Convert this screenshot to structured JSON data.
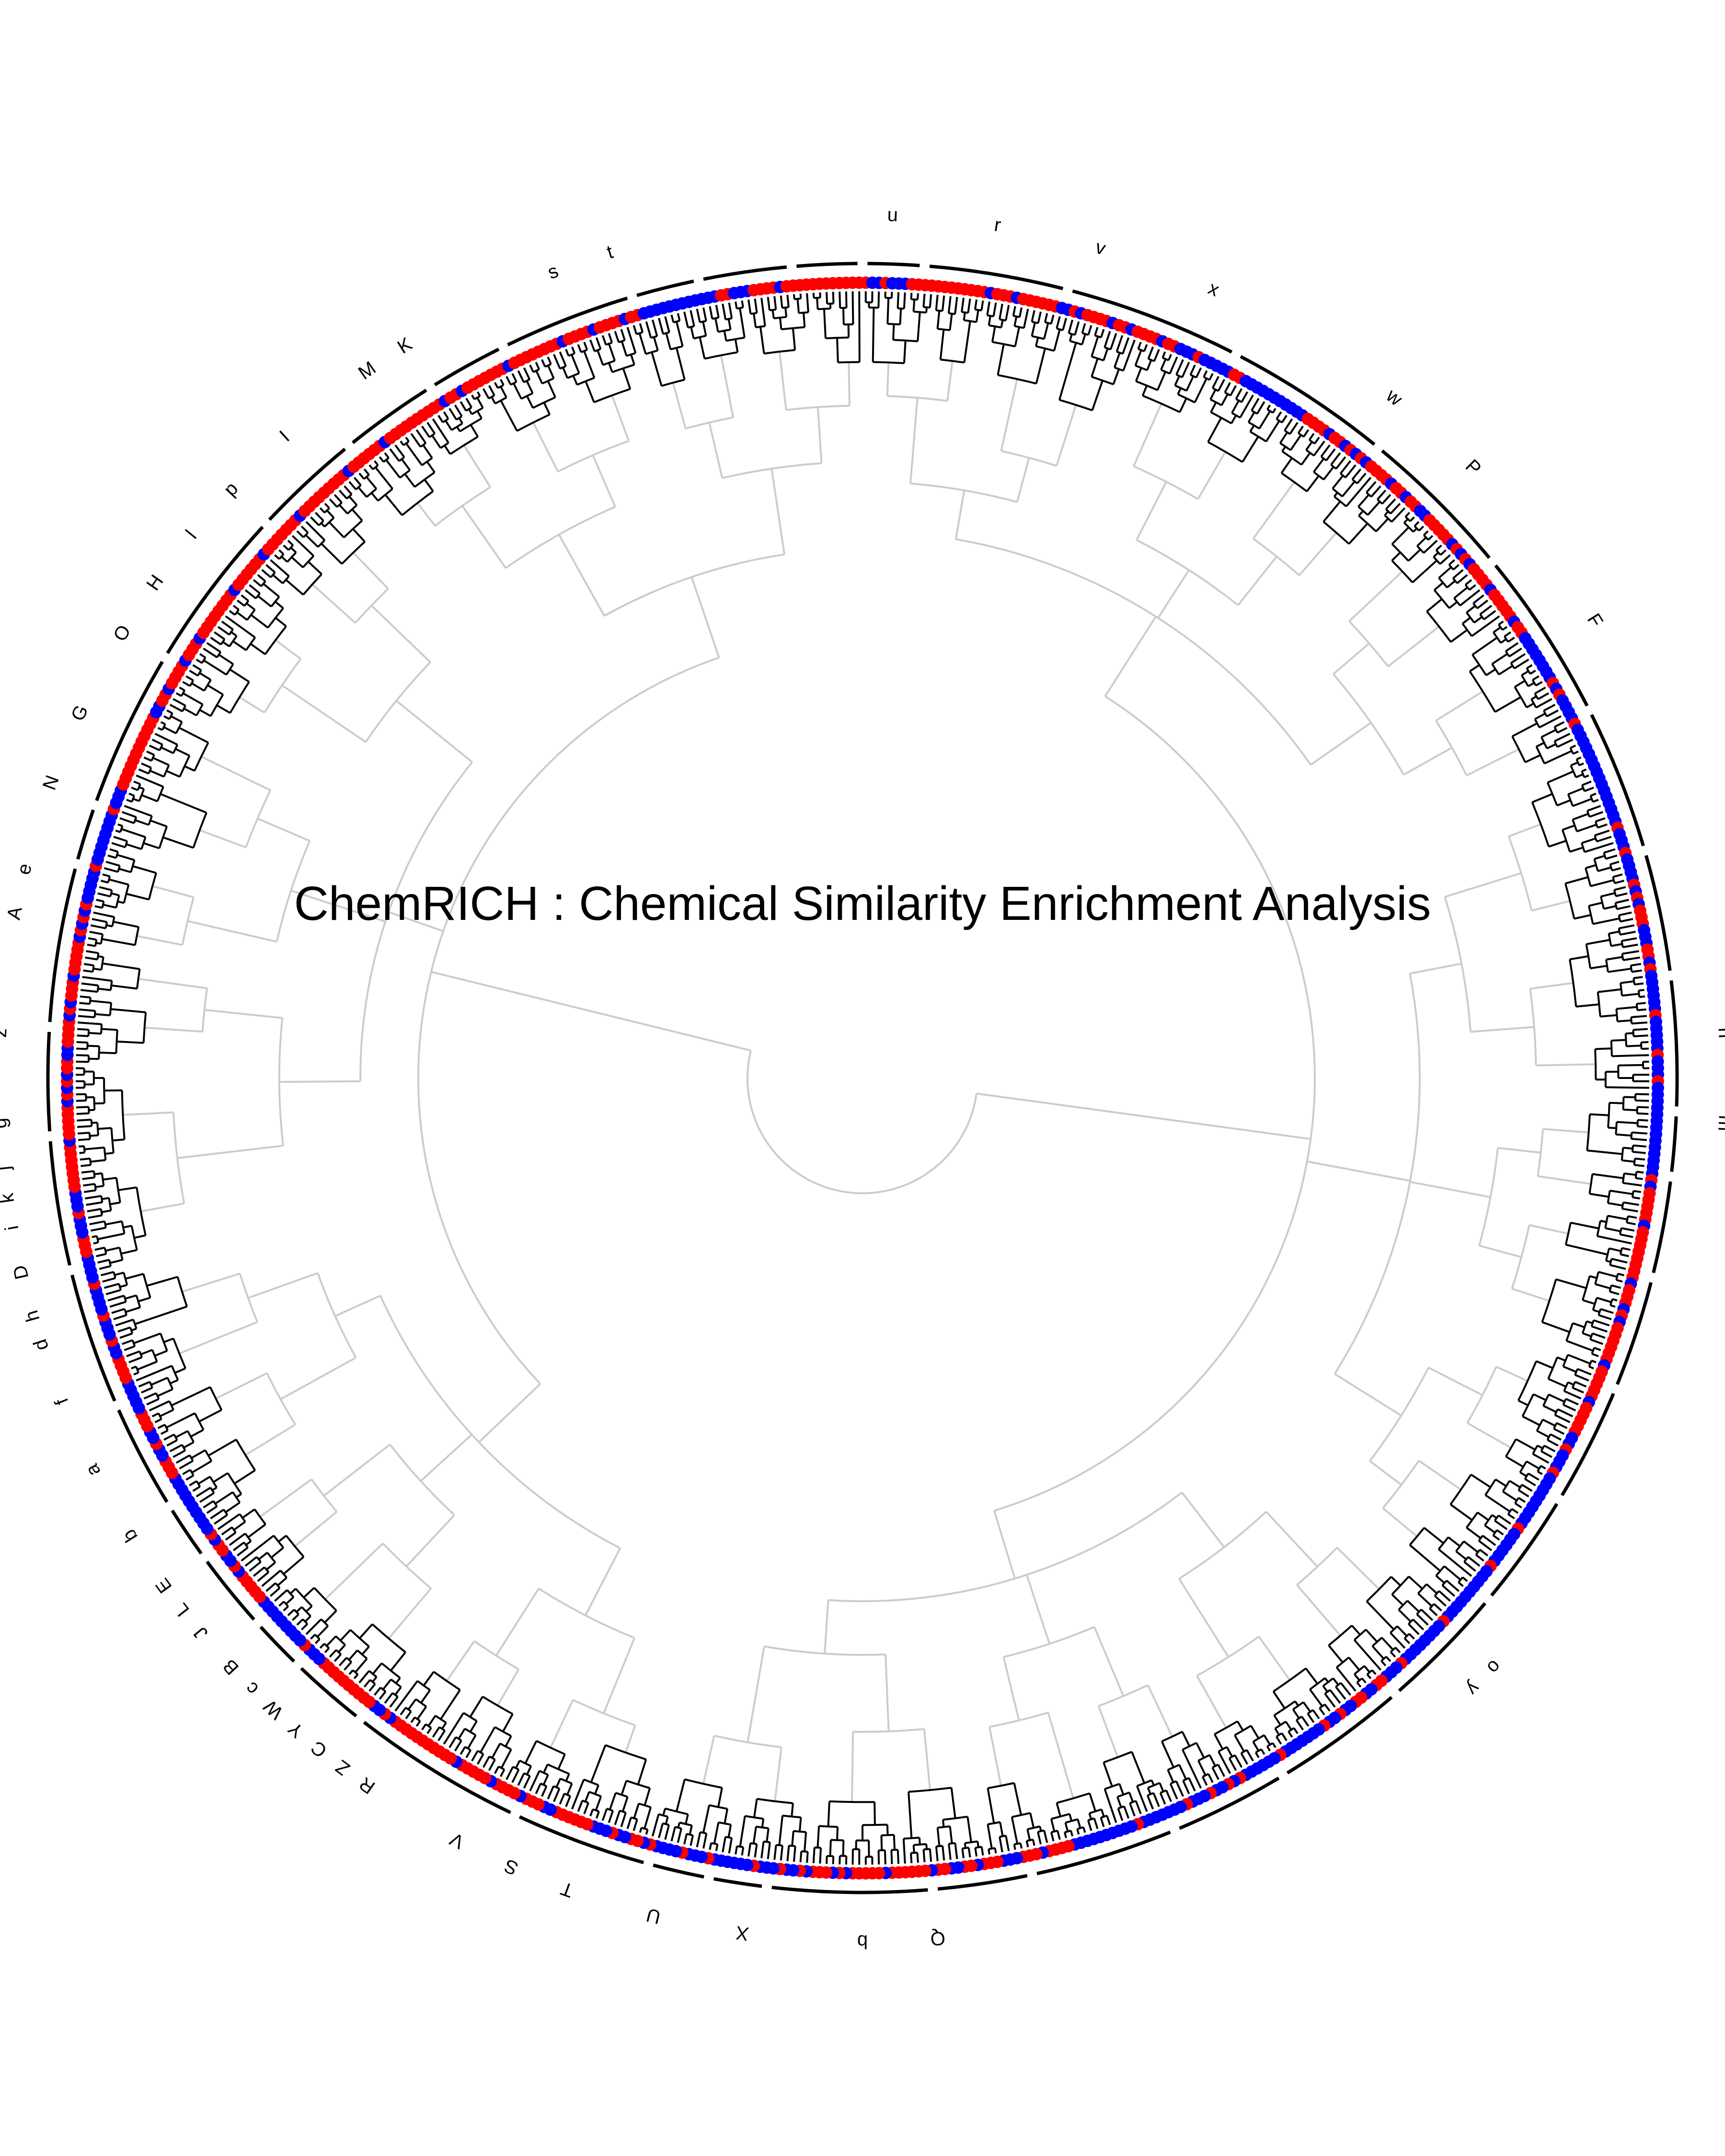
{
  "title": "ChemRICH : Chemical Similarity Enrichment Analysis",
  "colors": {
    "up": "#ff0000",
    "down": "#0000ff",
    "tree_inner": "#cccccc",
    "tree_outer": "#000000",
    "ring": "#000000",
    "background": "#ffffff"
  },
  "point_density_per_degree": 2.1,
  "cluster_labels": [
    {
      "text": "u",
      "angle": 2
    },
    {
      "text": "r",
      "angle": 9
    },
    {
      "text": "v",
      "angle": 16
    },
    {
      "text": "x",
      "angle": 24
    },
    {
      "text": "w",
      "angle": 38
    },
    {
      "text": "P",
      "angle": 45
    },
    {
      "text": "F",
      "angle": 58
    },
    {
      "text": "n",
      "angle": 87
    },
    {
      "text": "m",
      "angle": 93
    },
    {
      "text": "o",
      "angle": 133
    },
    {
      "text": "y",
      "angle": 135
    },
    {
      "text": "Q",
      "angle": 175
    },
    {
      "text": "b",
      "angle": 180
    },
    {
      "text": "X",
      "angle": 188
    },
    {
      "text": "U",
      "angle": 194
    },
    {
      "text": "T",
      "angle": 200
    },
    {
      "text": "S",
      "angle": 204
    },
    {
      "text": "V",
      "angle": 208
    },
    {
      "text": "R",
      "angle": 215
    },
    {
      "text": "Z",
      "angle": 217
    },
    {
      "text": "C",
      "angle": 219
    },
    {
      "text": "Y",
      "angle": 221
    },
    {
      "text": "W",
      "angle": 223
    },
    {
      "text": "c",
      "angle": 225
    },
    {
      "text": "B",
      "angle": 227
    },
    {
      "text": "J",
      "angle": 230
    },
    {
      "text": "L",
      "angle": 232
    },
    {
      "text": "E",
      "angle": 234
    },
    {
      "text": "b",
      "angle": 238
    },
    {
      "text": "a",
      "angle": 243
    },
    {
      "text": "f",
      "angle": 248
    },
    {
      "text": "d",
      "angle": 252
    },
    {
      "text": "h",
      "angle": 254
    },
    {
      "text": "D",
      "angle": 257
    },
    {
      "text": "i",
      "angle": 260
    },
    {
      "text": "k",
      "angle": 262
    },
    {
      "text": "j",
      "angle": 264
    },
    {
      "text": "g",
      "angle": 267
    },
    {
      "text": "z",
      "angle": 273
    },
    {
      "text": "A",
      "angle": 281
    },
    {
      "text": "e",
      "angle": 284
    },
    {
      "text": "N",
      "angle": 290
    },
    {
      "text": "G",
      "angle": 295
    },
    {
      "text": "O",
      "angle": 301
    },
    {
      "text": "H",
      "angle": 305
    },
    {
      "text": "l",
      "angle": 309
    },
    {
      "text": "p",
      "angle": 313
    },
    {
      "text": "I",
      "angle": 318
    },
    {
      "text": "M",
      "angle": 325
    },
    {
      "text": "K",
      "angle": 328
    },
    {
      "text": "s",
      "angle": 339
    },
    {
      "text": "t",
      "angle": 343
    }
  ],
  "color_runs": [
    {
      "from": 0,
      "to": 4,
      "color": "blue"
    },
    {
      "from": 4,
      "to": 14,
      "color": "red"
    },
    {
      "from": 14,
      "to": 22,
      "color": "red"
    },
    {
      "from": 22,
      "to": 34,
      "color": "blue"
    },
    {
      "from": 34,
      "to": 56,
      "color": "red"
    },
    {
      "from": 56,
      "to": 72,
      "color": "blue"
    },
    {
      "from": 72,
      "to": 84,
      "color": "blue"
    },
    {
      "from": 84,
      "to": 98,
      "color": "blue"
    },
    {
      "from": 98,
      "to": 118,
      "color": "red"
    },
    {
      "from": 118,
      "to": 140,
      "color": "blue"
    },
    {
      "from": 140,
      "to": 165,
      "color": "blue"
    },
    {
      "from": 165,
      "to": 185,
      "color": "red"
    },
    {
      "from": 185,
      "to": 200,
      "color": "blue"
    },
    {
      "from": 200,
      "to": 212,
      "color": "red"
    },
    {
      "from": 212,
      "to": 222,
      "color": "red"
    },
    {
      "from": 222,
      "to": 228,
      "color": "blue"
    },
    {
      "from": 228,
      "to": 235,
      "color": "red"
    },
    {
      "from": 235,
      "to": 240,
      "color": "blue"
    },
    {
      "from": 240,
      "to": 262,
      "color": "blue"
    },
    {
      "from": 262,
      "to": 272,
      "color": "red"
    },
    {
      "from": 272,
      "to": 282,
      "color": "red"
    },
    {
      "from": 282,
      "to": 292,
      "color": "blue"
    },
    {
      "from": 292,
      "to": 310,
      "color": "red"
    },
    {
      "from": 310,
      "to": 330,
      "color": "red"
    },
    {
      "from": 330,
      "to": 342,
      "color": "red"
    },
    {
      "from": 342,
      "to": 352,
      "color": "blue"
    },
    {
      "from": 352,
      "to": 360,
      "color": "red"
    }
  ]
}
